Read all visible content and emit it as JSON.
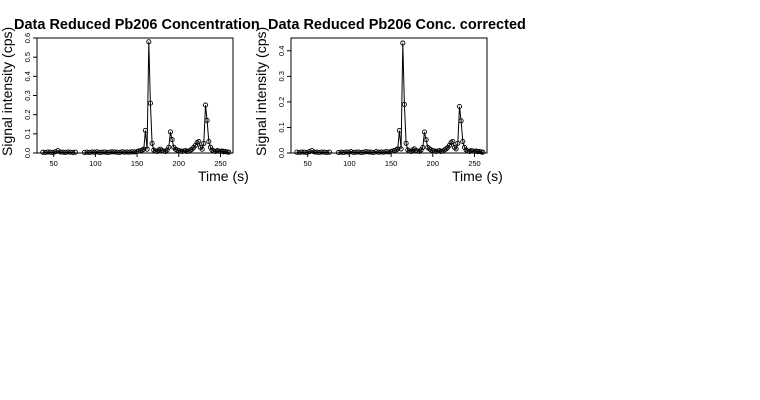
{
  "chart_data": [
    {
      "type": "line",
      "title": "Data Reduced Pb206 Concentration",
      "xlabel": "Time (s)",
      "ylabel": "Signal intensity (cps)",
      "xlim": [
        30,
        265
      ],
      "ylim": [
        0,
        0.6
      ],
      "x_ticks": [
        50,
        100,
        150,
        200,
        250
      ],
      "y_ticks": [
        0.0,
        0.1,
        0.2,
        0.3,
        0.4,
        0.5,
        0.6
      ],
      "x_tick_labels": [
        "50",
        "100",
        "150",
        "200",
        "250"
      ],
      "y_tick_labels": [
        "0.0",
        "0.1",
        "0.2",
        "0.3",
        "0.4",
        "0.5",
        "0.6"
      ],
      "markers": "open circles joined by lines",
      "grid": false,
      "series": [
        {
          "segments": [
            {
              "x": [
                37,
                40,
                43,
                46,
                49,
                52,
                55,
                58,
                61,
                64,
                67,
                70,
                73,
                76
              ],
              "y": [
                0.004,
                0.003,
                0.005,
                0.004,
                0.003,
                0.006,
                0.012,
                0.005,
                0.004,
                0.003,
                0.005,
                0.004,
                0.003,
                0.004
              ]
            },
            {
              "x": [
                87,
                90,
                93,
                96,
                99,
                102,
                105,
                108,
                111,
                114,
                117,
                120,
                123,
                126,
                129,
                132,
                135,
                138,
                141,
                144,
                147,
                150,
                152,
                154,
                156,
                158,
                160,
                162,
                164,
                166,
                168,
                170,
                172,
                174,
                176,
                178,
                180,
                182,
                184,
                186,
                188,
                190,
                192,
                194,
                196,
                198,
                200,
                202,
                204,
                206,
                208,
                210,
                212,
                214,
                216,
                218,
                220,
                222,
                224,
                226,
                228,
                230,
                232,
                234,
                236,
                238,
                240,
                242,
                244,
                246,
                248,
                250,
                252,
                254,
                256,
                258,
                260
              ],
              "y": [
                0.003,
                0.004,
                0.003,
                0.005,
                0.004,
                0.006,
                0.003,
                0.004,
                0.005,
                0.003,
                0.004,
                0.006,
                0.005,
                0.004,
                0.003,
                0.006,
                0.004,
                0.005,
                0.004,
                0.006,
                0.005,
                0.008,
                0.01,
                0.012,
                0.015,
                0.02,
                0.118,
                0.02,
                0.58,
                0.26,
                0.05,
                0.015,
                0.01,
                0.008,
                0.015,
                0.02,
                0.012,
                0.01,
                0.008,
                0.015,
                0.03,
                0.11,
                0.07,
                0.03,
                0.02,
                0.015,
                0.012,
                0.01,
                0.008,
                0.01,
                0.012,
                0.008,
                0.01,
                0.015,
                0.02,
                0.03,
                0.04,
                0.055,
                0.06,
                0.03,
                0.02,
                0.05,
                0.25,
                0.17,
                0.06,
                0.03,
                0.015,
                0.01,
                0.008,
                0.012,
                0.01,
                0.008,
                0.01,
                0.006,
                0.008,
                0.005,
                0.004
              ]
            }
          ]
        }
      ]
    },
    {
      "type": "line",
      "title": "Data Reduced Pb206 Conc. corrected",
      "xlabel": "Time (s)",
      "ylabel": "Signal intensity (cps)",
      "xlim": [
        30,
        265
      ],
      "ylim": [
        0,
        0.45
      ],
      "x_ticks": [
        50,
        100,
        150,
        200,
        250
      ],
      "y_ticks": [
        0.0,
        0.1,
        0.2,
        0.3,
        0.4
      ],
      "x_tick_labels": [
        "50",
        "100",
        "150",
        "200",
        "250"
      ],
      "y_tick_labels": [
        "0.0",
        "0.1",
        "0.2",
        "0.3",
        "0.4"
      ],
      "markers": "open circles joined by lines",
      "grid": false,
      "series": [
        {
          "segments": [
            {
              "x": [
                37,
                40,
                43,
                46,
                49,
                52,
                55,
                58,
                61,
                64,
                67,
                70,
                73,
                76
              ],
              "y": [
                0.003,
                0.002,
                0.004,
                0.003,
                0.002,
                0.005,
                0.009,
                0.004,
                0.003,
                0.002,
                0.004,
                0.003,
                0.002,
                0.003
              ]
            },
            {
              "x": [
                87,
                90,
                93,
                96,
                99,
                102,
                105,
                108,
                111,
                114,
                117,
                120,
                123,
                126,
                129,
                132,
                135,
                138,
                141,
                144,
                147,
                150,
                152,
                154,
                156,
                158,
                160,
                162,
                164,
                166,
                168,
                170,
                172,
                174,
                176,
                178,
                180,
                182,
                184,
                186,
                188,
                190,
                192,
                194,
                196,
                198,
                200,
                202,
                204,
                206,
                208,
                210,
                212,
                214,
                216,
                218,
                220,
                222,
                224,
                226,
                228,
                230,
                232,
                234,
                236,
                238,
                240,
                242,
                244,
                246,
                248,
                250,
                252,
                254,
                256,
                258,
                260
              ],
              "y": [
                0.002,
                0.003,
                0.002,
                0.004,
                0.003,
                0.005,
                0.002,
                0.003,
                0.004,
                0.002,
                0.003,
                0.005,
                0.004,
                0.003,
                0.002,
                0.005,
                0.003,
                0.004,
                0.003,
                0.005,
                0.004,
                0.006,
                0.008,
                0.009,
                0.012,
                0.016,
                0.088,
                0.016,
                0.43,
                0.19,
                0.038,
                0.012,
                0.008,
                0.006,
                0.012,
                0.016,
                0.009,
                0.008,
                0.006,
                0.012,
                0.022,
                0.082,
                0.052,
                0.022,
                0.016,
                0.012,
                0.009,
                0.008,
                0.006,
                0.008,
                0.009,
                0.006,
                0.008,
                0.012,
                0.016,
                0.022,
                0.03,
                0.041,
                0.045,
                0.022,
                0.016,
                0.038,
                0.182,
                0.126,
                0.045,
                0.022,
                0.012,
                0.008,
                0.006,
                0.009,
                0.008,
                0.006,
                0.008,
                0.005,
                0.006,
                0.004,
                0.003
              ]
            }
          ]
        }
      ]
    }
  ]
}
